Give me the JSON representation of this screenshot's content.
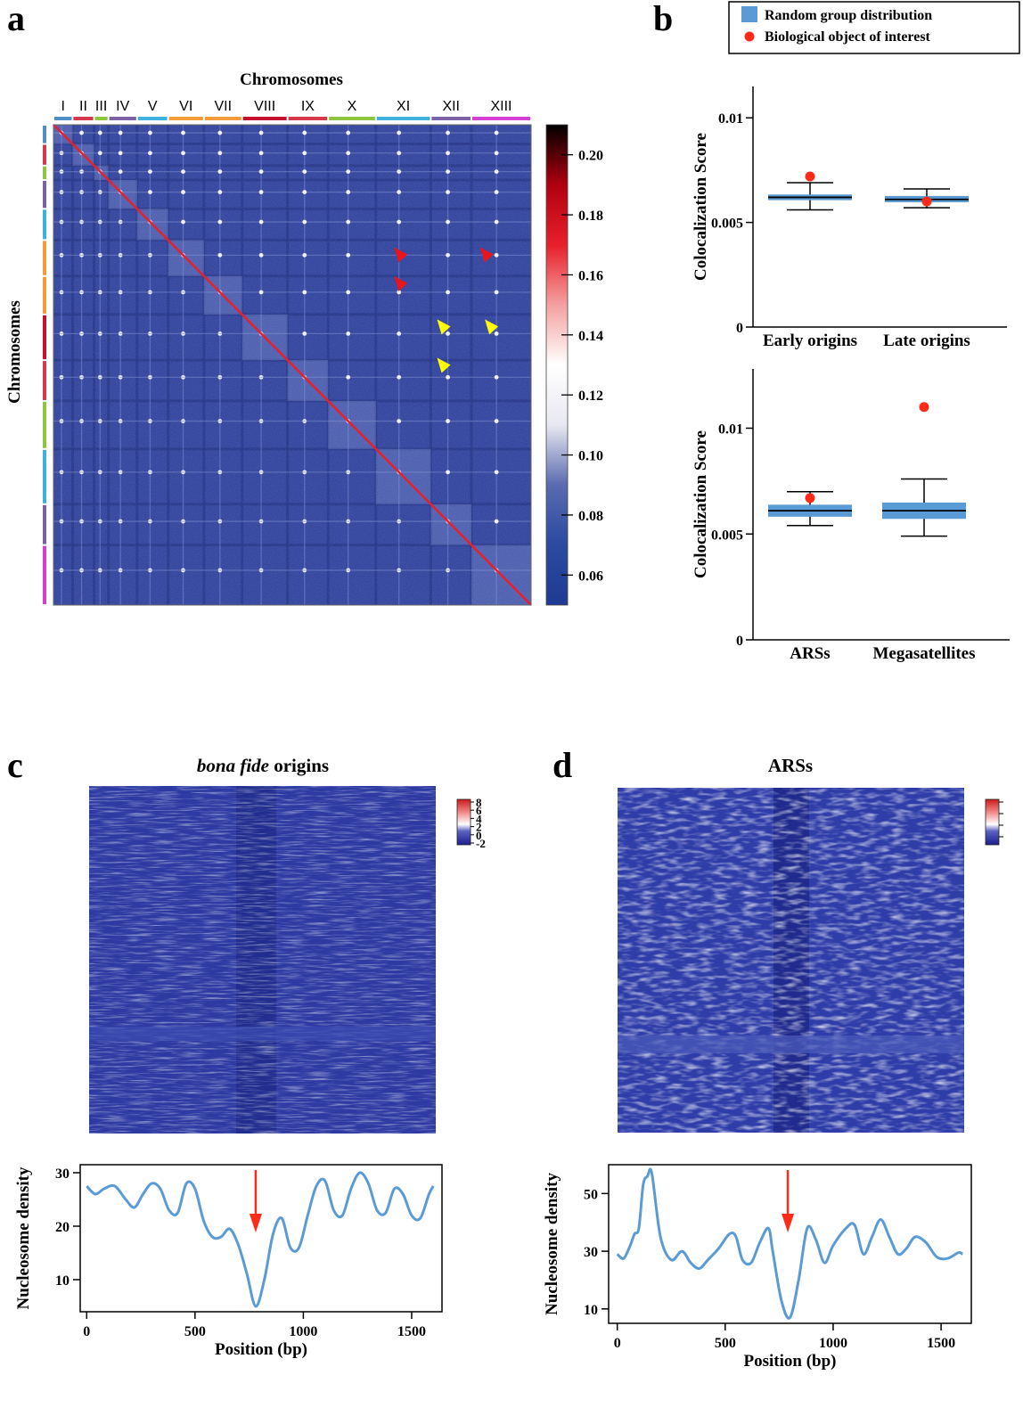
{
  "panels": {
    "a": "a",
    "b": "b",
    "c": "c",
    "d": "d"
  },
  "legend": {
    "entries": [
      {
        "label": "Random group distribution",
        "color": "#5b9bd5",
        "marker": "square"
      },
      {
        "label": "Biological object of interest",
        "color": "#ff2a1a",
        "marker": "circle"
      }
    ]
  },
  "chart_data": [
    {
      "id": "a",
      "type": "heatmap",
      "title": "Chromosomes",
      "xlabel": "Chromosomes",
      "ylabel": "Chromosomes",
      "chromosomes": [
        {
          "name": "I",
          "color": "#4f8fc7"
        },
        {
          "name": "II",
          "color": "#d6394a"
        },
        {
          "name": "III",
          "color": "#8cc63f"
        },
        {
          "name": "IV",
          "color": "#7b62a8"
        },
        {
          "name": "V",
          "color": "#3fb0e0"
        },
        {
          "name": "VI",
          "color": "#f39a3a"
        },
        {
          "name": "VII",
          "color": "#f39a3a"
        },
        {
          "name": "VIII",
          "color": "#c8102e"
        },
        {
          "name": "IX",
          "color": "#d6394a"
        },
        {
          "name": "X",
          "color": "#8cc63f"
        },
        {
          "name": "XI",
          "color": "#3fb0e0"
        },
        {
          "name": "XII",
          "color": "#7b62a8"
        },
        {
          "name": "XIII",
          "color": "#d63fd6"
        }
      ],
      "colorbar": {
        "ticks": [
          "0.20",
          "0.18",
          "0.16",
          "0.14",
          "0.12",
          "0.10",
          "0.08",
          "0.06"
        ],
        "min": 0.05,
        "max": 0.21,
        "colors": [
          "#1f3a93",
          "#2a4aa0",
          "#5a6ab0",
          "#e8e8f0",
          "#ffffff",
          "#f4a0a0",
          "#e8202a",
          "#b00010",
          "#000000"
        ]
      },
      "annotations": [
        {
          "type": "arrowhead",
          "color": "#e8141e",
          "row": 0.27,
          "col": 0.73
        },
        {
          "type": "arrowhead",
          "color": "#e8141e",
          "row": 0.27,
          "col": 0.91
        },
        {
          "type": "arrowhead",
          "color": "#e8141e",
          "row": 0.33,
          "col": 0.73
        },
        {
          "type": "arrowhead",
          "color": "#ffff00",
          "row": 0.42,
          "col": 0.82
        },
        {
          "type": "arrowhead",
          "color": "#ffff00",
          "row": 0.42,
          "col": 0.92
        },
        {
          "type": "arrowhead",
          "color": "#ffff00",
          "row": 0.5,
          "col": 0.82
        }
      ]
    },
    {
      "id": "b-top",
      "type": "box",
      "ylabel": "Colocalization Score",
      "ylim": [
        0,
        0.0115
      ],
      "yticks": [
        "0",
        "0.005",
        "0.01"
      ],
      "categories": [
        "Early origins",
        "Late origins"
      ],
      "series": [
        {
          "name": "Random group distribution",
          "boxes": [
            {
              "q1": 0.00615,
              "median": 0.0062,
              "q3": 0.00625,
              "lower": 0.0056,
              "upper": 0.0069
            },
            {
              "q1": 0.00605,
              "median": 0.0061,
              "q3": 0.00618,
              "lower": 0.0057,
              "upper": 0.0066
            }
          ]
        },
        {
          "name": "Biological object of interest",
          "values": [
            0.0072,
            0.006
          ]
        }
      ]
    },
    {
      "id": "b-bottom",
      "type": "box",
      "ylabel": "Colocalization Score",
      "ylim": [
        0,
        0.0128
      ],
      "yticks": [
        "0",
        "0.005",
        "0.01"
      ],
      "categories": [
        "ARSs",
        "Megasatellites"
      ],
      "series": [
        {
          "name": "Random group distribution",
          "boxes": [
            {
              "q1": 0.0059,
              "median": 0.0061,
              "q3": 0.0063,
              "lower": 0.0054,
              "upper": 0.007
            },
            {
              "q1": 0.0058,
              "median": 0.0061,
              "q3": 0.0064,
              "lower": 0.0049,
              "upper": 0.0076
            }
          ]
        },
        {
          "name": "Biological object of interest",
          "values": [
            0.0067,
            0.011
          ]
        }
      ]
    },
    {
      "id": "c-heatmap",
      "type": "heatmap",
      "title": "bona fide origins",
      "title_italic": "bona fide",
      "title_rest": " origins",
      "colorbar": {
        "ticks": [
          "8",
          "6",
          "4",
          "2",
          "0",
          "-2"
        ]
      }
    },
    {
      "id": "c-line",
      "type": "line",
      "xlabel": "Position (bp)",
      "ylabel": "Nucleosome density",
      "xlim": [
        -30,
        1640
      ],
      "ylim": [
        4,
        31.5
      ],
      "xticks": [
        0,
        500,
        1000,
        1500
      ],
      "yticks": [
        10,
        20,
        30
      ],
      "arrow_x": 780,
      "x": [
        0,
        40,
        80,
        130,
        180,
        220,
        260,
        300,
        340,
        380,
        420,
        460,
        500,
        540,
        580,
        620,
        660,
        700,
        740,
        780,
        820,
        860,
        900,
        940,
        980,
        1020,
        1060,
        1100,
        1140,
        1180,
        1220,
        1260,
        1300,
        1340,
        1380,
        1420,
        1460,
        1500,
        1540,
        1580,
        1600
      ],
      "y": [
        27.5,
        26,
        27,
        27.5,
        25,
        23.5,
        26,
        28,
        27,
        23,
        22.5,
        28,
        27,
        21,
        18,
        18,
        19.5,
        16.5,
        11,
        5,
        10,
        18.5,
        21.5,
        16,
        16,
        22,
        27.5,
        28.5,
        23,
        22,
        27,
        30,
        28,
        23,
        22.5,
        27,
        26,
        22,
        21.5,
        26,
        27.5
      ]
    },
    {
      "id": "d-heatmap",
      "type": "heatmap",
      "title": "ARSs"
    },
    {
      "id": "d-line",
      "type": "line",
      "xlabel": "Position (bp)",
      "ylabel": "Nucleosome density",
      "xlim": [
        -40,
        1640
      ],
      "ylim": [
        5,
        60
      ],
      "xticks": [
        0,
        500,
        1000,
        1500
      ],
      "yticks": [
        10,
        30,
        50
      ],
      "arrow_x": 790,
      "x": [
        0,
        30,
        60,
        80,
        100,
        120,
        140,
        160,
        200,
        250,
        300,
        340,
        380,
        420,
        470,
        520,
        550,
        580,
        620,
        660,
        700,
        720,
        760,
        800,
        840,
        880,
        920,
        960,
        1000,
        1060,
        1100,
        1140,
        1180,
        1220,
        1260,
        1300,
        1340,
        1380,
        1430,
        1480,
        1530,
        1580,
        1600
      ],
      "y": [
        29,
        27.5,
        32,
        36,
        38,
        53,
        56,
        57,
        35,
        27,
        30,
        26,
        24,
        27,
        31,
        36,
        35,
        27,
        26,
        33,
        38,
        30,
        13,
        7,
        20,
        38,
        34,
        26,
        32,
        38,
        39,
        29,
        35,
        41,
        35,
        29,
        31,
        35,
        33,
        28,
        27.5,
        29.5,
        29
      ]
    }
  ]
}
